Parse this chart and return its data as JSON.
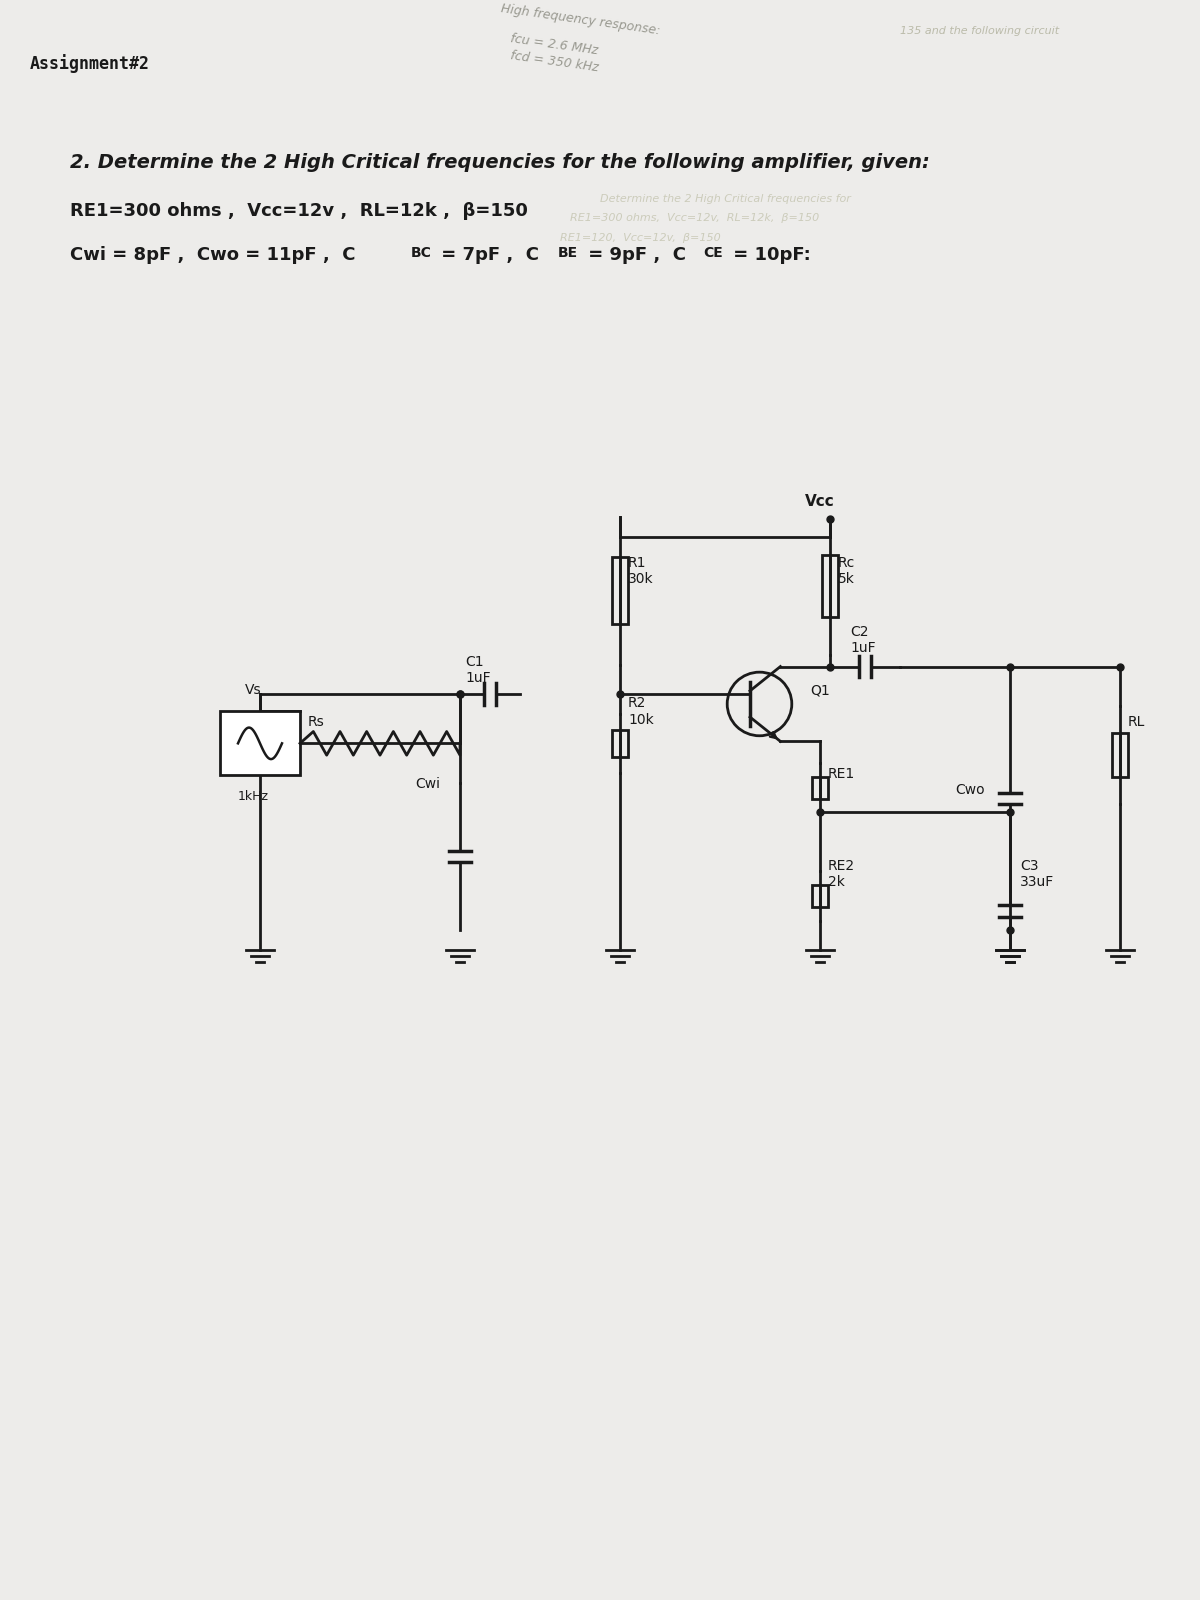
{
  "paper_color": "#edecea",
  "line_color": "#1a1a1a",
  "text_color": "#1a1a1a",
  "faded_color": "#c8c4bc",
  "header_left": "Assignment#2",
  "title_line1": "2. Determine the 2 High Critical frequencies for the following amplifier, given:",
  "title_line2a": "RE1=300 ohms ,  Vcc=12v ,  RL=12k ,  β=150",
  "title_line2b": "Cwi = 8pF ,  Cwo = 11pF ,  C",
  "title_line2c": "BC",
  "title_line2d": " = 7pF ,  C",
  "title_line2e": "BE",
  "title_line2f": " = 9pF ,  C",
  "title_line2g": "CE",
  "title_line2h": " = 10pF:",
  "hf_line1": "High frequency response:",
  "hf_line2": "fcu = 2.6 MHz",
  "hf_line3": "fcd = 350 kHz",
  "Vcc_label": "Vcc",
  "R1_label": "R1\n30k",
  "Rc_label": "Rc\n5k",
  "C2_label": "C2\n1uF",
  "C1_label": "C1\n1uF",
  "Cwi_label": "Cwi",
  "R2_label": "R2\n10k",
  "Q1_label": "Q1",
  "RE1_label": "RE1",
  "RE2_label": "RE2\n2k",
  "C3_label": "C3\n33uF",
  "Cwo_label": "Cwo",
  "RL_label": "RL",
  "Vs_label": "Vs",
  "Vs_freq": "1kHz",
  "Rs_label": "Rs"
}
